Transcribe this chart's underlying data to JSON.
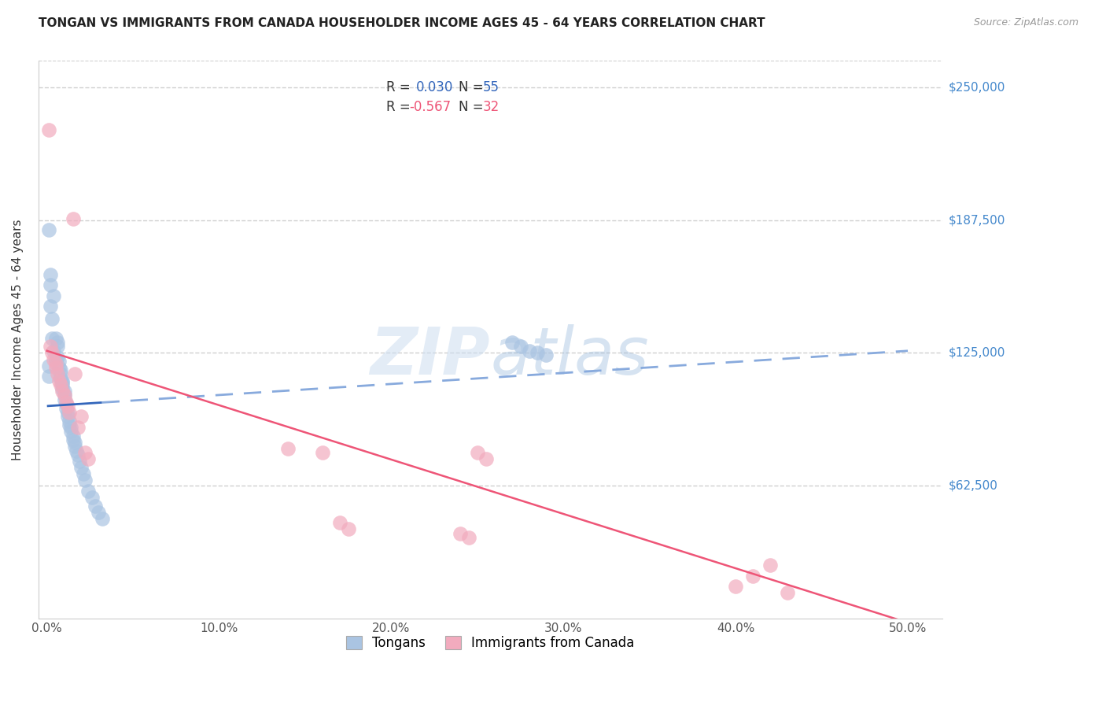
{
  "title": "TONGAN VS IMMIGRANTS FROM CANADA HOUSEHOLDER INCOME AGES 45 - 64 YEARS CORRELATION CHART",
  "source": "Source: ZipAtlas.com",
  "ylabel": "Householder Income Ages 45 - 64 years",
  "xlabel_ticks": [
    "0.0%",
    "10.0%",
    "20.0%",
    "30.0%",
    "40.0%",
    "50.0%"
  ],
  "xlabel_vals": [
    0.0,
    0.1,
    0.2,
    0.3,
    0.4,
    0.5
  ],
  "ytick_labels": [
    "$62,500",
    "$125,000",
    "$187,500",
    "$250,000"
  ],
  "ytick_vals": [
    62500,
    125000,
    187500,
    250000
  ],
  "ylim": [
    0,
    262500
  ],
  "xlim": [
    -0.005,
    0.52
  ],
  "blue_R": 0.03,
  "blue_N": 55,
  "pink_R": -0.567,
  "pink_N": 32,
  "blue_color": "#aac4e2",
  "pink_color": "#f2abbe",
  "blue_line_color": "#3366bb",
  "pink_line_color": "#ee5577",
  "blue_dashed_color": "#88aadd",
  "legend_label1": "Tongans",
  "legend_label2": "Immigrants from Canada",
  "blue_x": [
    0.001,
    0.002,
    0.002,
    0.003,
    0.003,
    0.004,
    0.004,
    0.005,
    0.005,
    0.006,
    0.006,
    0.006,
    0.007,
    0.007,
    0.008,
    0.008,
    0.008,
    0.009,
    0.009,
    0.009,
    0.009,
    0.01,
    0.01,
    0.01,
    0.011,
    0.011,
    0.012,
    0.012,
    0.013,
    0.013,
    0.014,
    0.014,
    0.015,
    0.015,
    0.016,
    0.016,
    0.017,
    0.018,
    0.019,
    0.02,
    0.021,
    0.022,
    0.024,
    0.026,
    0.028,
    0.03,
    0.032,
    0.001,
    0.001,
    0.002,
    0.27,
    0.275,
    0.28,
    0.285,
    0.29
  ],
  "blue_y": [
    183000,
    162000,
    147000,
    141000,
    132000,
    152000,
    126000,
    122000,
    132000,
    130000,
    128000,
    123000,
    121000,
    118000,
    117000,
    115000,
    113000,
    112000,
    111000,
    110000,
    108000,
    107000,
    105000,
    103000,
    101000,
    99000,
    97000,
    95000,
    93000,
    91000,
    90000,
    88000,
    86000,
    84000,
    83000,
    81000,
    79000,
    77000,
    74000,
    71000,
    68000,
    65000,
    60000,
    57000,
    53000,
    50000,
    47000,
    119000,
    114000,
    157000,
    130000,
    128000,
    126000,
    125000,
    124000
  ],
  "pink_x": [
    0.001,
    0.002,
    0.003,
    0.004,
    0.005,
    0.005,
    0.006,
    0.007,
    0.008,
    0.009,
    0.01,
    0.011,
    0.012,
    0.013,
    0.015,
    0.016,
    0.018,
    0.02,
    0.022,
    0.024,
    0.14,
    0.16,
    0.17,
    0.175,
    0.24,
    0.245,
    0.25,
    0.255,
    0.4,
    0.41,
    0.42,
    0.43
  ],
  "pink_y": [
    230000,
    128000,
    125000,
    122000,
    120000,
    118000,
    115000,
    112000,
    110000,
    107000,
    105000,
    102000,
    100000,
    97000,
    188000,
    115000,
    90000,
    95000,
    78000,
    75000,
    80000,
    78000,
    45000,
    42000,
    40000,
    38000,
    78000,
    75000,
    15000,
    20000,
    25000,
    12000
  ]
}
